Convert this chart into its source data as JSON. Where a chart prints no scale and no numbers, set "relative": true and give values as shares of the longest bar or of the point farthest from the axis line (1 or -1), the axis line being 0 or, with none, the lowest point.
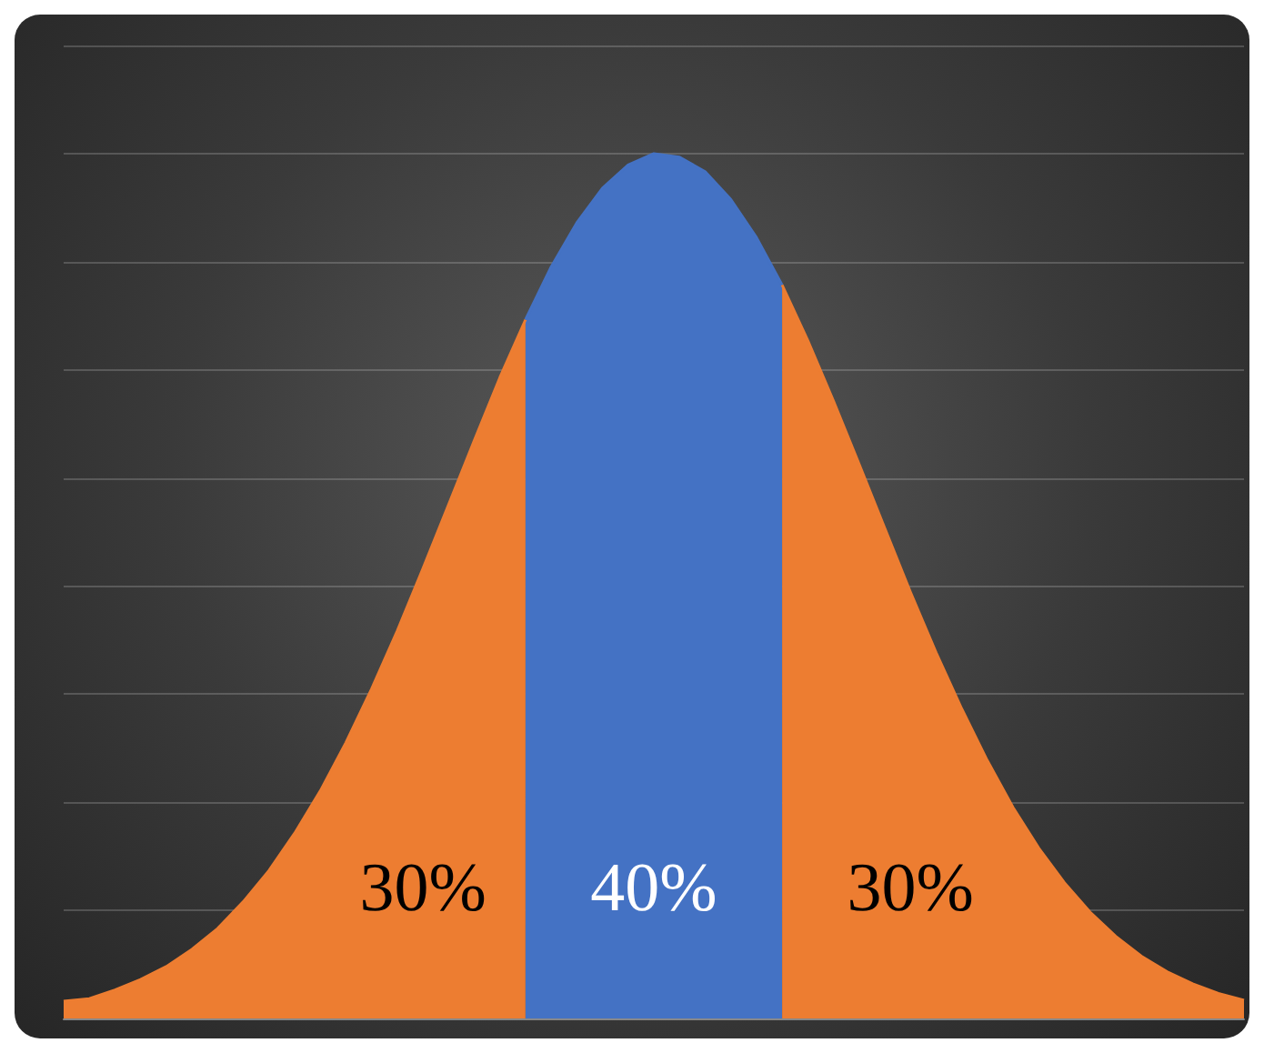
{
  "chart_data": {
    "type": "area",
    "relative": true,
    "grid": "y",
    "categories": [
      null,
      null,
      null,
      null,
      null,
      null,
      null,
      null,
      null,
      null,
      null,
      null,
      null,
      null,
      null,
      null,
      null,
      null,
      null,
      null,
      null,
      null,
      null,
      null,
      null,
      null,
      null,
      null,
      null,
      null,
      null,
      null,
      null,
      null,
      null,
      null,
      null,
      null,
      null,
      null,
      null,
      null,
      null,
      null,
      null,
      null,
      null
    ],
    "series": [
      {
        "color": "#ed7d31",
        "values": [
          0.02,
          0.023,
          0.033,
          0.045,
          0.06,
          0.08,
          0.104,
          0.135,
          0.171,
          0.214,
          0.263,
          0.319,
          0.381,
          0.448,
          0.52,
          0.594,
          0.668,
          0.741,
          0.808,
          null,
          null,
          null,
          null,
          null,
          null,
          null,
          null,
          null,
          null,
          null,
          null,
          null,
          null,
          null,
          null,
          null,
          null,
          null,
          null,
          null,
          null,
          null,
          null,
          null,
          null,
          null,
          null
        ]
      },
      {
        "color": "#4472c4",
        "values": [
          null,
          null,
          null,
          null,
          null,
          null,
          null,
          null,
          null,
          null,
          null,
          null,
          null,
          null,
          null,
          null,
          null,
          null,
          0.808,
          0.869,
          0.92,
          0.96,
          0.987,
          1,
          0.996,
          0.979,
          0.947,
          0.903,
          0.848,
          null,
          null,
          null,
          null,
          null,
          null,
          null,
          null,
          null,
          null,
          null,
          null,
          null,
          null,
          null,
          null,
          null,
          null
        ]
      },
      {
        "color": "#ed7d31",
        "values": [
          null,
          null,
          null,
          null,
          null,
          null,
          null,
          null,
          null,
          null,
          null,
          null,
          null,
          null,
          null,
          null,
          null,
          null,
          null,
          null,
          null,
          null,
          null,
          null,
          null,
          null,
          null,
          null,
          0.848,
          0.784,
          0.714,
          0.641,
          0.567,
          0.493,
          0.423,
          0.358,
          0.298,
          0.244,
          0.197,
          0.157,
          0.123,
          0.095,
          0.072,
          0.054,
          0.04,
          0.029,
          0.021
        ]
      }
    ],
    "annotations": [
      "30%",
      "40%",
      "30%"
    ]
  }
}
